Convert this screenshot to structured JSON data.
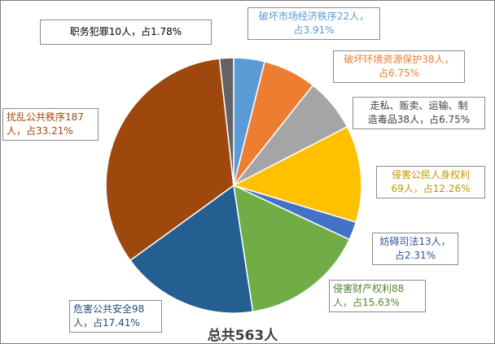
{
  "chart_data": {
    "type": "pie",
    "total_label": "总共563人",
    "slices": [
      {
        "name": "破坏市场经济秩序",
        "value": 22,
        "percent": 3.91,
        "color": "#5b9bd5",
        "text_color": "#5b9bd5",
        "line1": "破坏市场经济秩序22人，",
        "line2": "占3.91%"
      },
      {
        "name": "破坏环境资源保护",
        "value": 38,
        "percent": 6.75,
        "color": "#ed7d31",
        "text_color": "#ed7d31",
        "line1": "破坏环境资源保护38人，",
        "line2": "占6.75%"
      },
      {
        "name": "走私、贩卖、运输、制造毒品",
        "value": 38,
        "percent": 6.75,
        "color": "#a5a5a5",
        "text_color": "#404040",
        "line1": "走私、贩卖、运输、制",
        "line2": "造毒品38人，占6.75%"
      },
      {
        "name": "侵害公民人身权利",
        "value": 69,
        "percent": 12.26,
        "color": "#ffc000",
        "text_color": "#c59600",
        "line1": "侵害公民人身权利",
        "line2": "69人，占12.26%"
      },
      {
        "name": "妨碍司法",
        "value": 13,
        "percent": 2.31,
        "color": "#4472c4",
        "text_color": "#2f5597",
        "line1": "妨碍司法13人，",
        "line2": "占2.31%"
      },
      {
        "name": "侵害财产权利",
        "value": 88,
        "percent": 15.63,
        "color": "#70ad47",
        "text_color": "#548235",
        "line1": "侵害财产权利88",
        "line2": "人，占15.63%"
      },
      {
        "name": "危害公共安全",
        "value": 98,
        "percent": 17.41,
        "color": "#255e91",
        "text_color": "#1f4e79",
        "line1": "危害公共安全98",
        "line2": "人，占17.41%"
      },
      {
        "name": "扰乱公共秩序",
        "value": 187,
        "percent": 33.21,
        "color": "#9e480e",
        "text_color": "#9e480e",
        "line1": "扰乱公共秩序187",
        "line2": "人，占33.21%"
      },
      {
        "name": "职务犯罪",
        "value": 10,
        "percent": 1.78,
        "color": "#636363",
        "text_color": "#000000",
        "line1": "职务犯罪10人，占1.78%",
        "line2": ""
      }
    ]
  }
}
